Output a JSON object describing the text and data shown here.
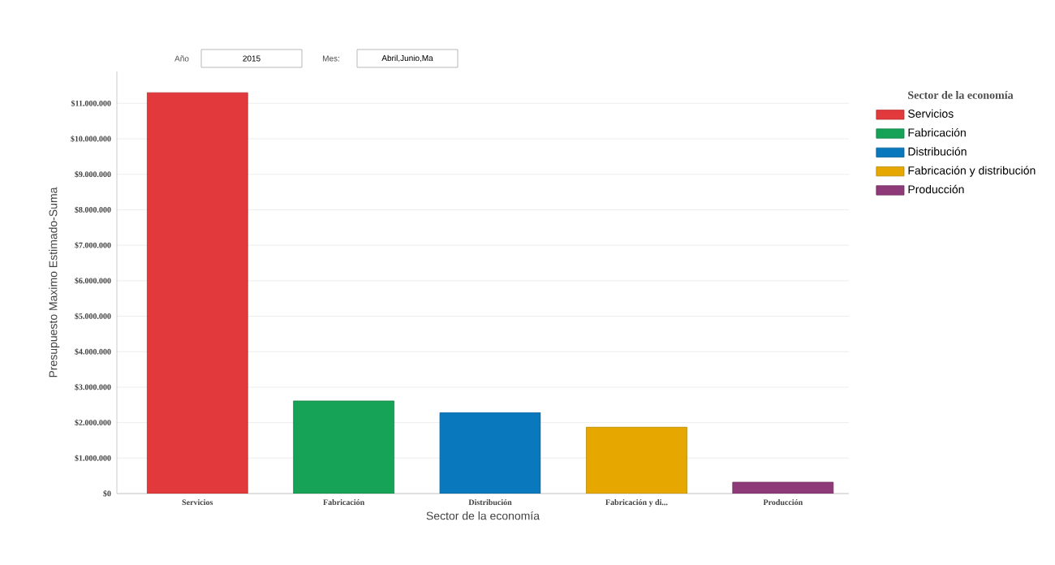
{
  "chart_data": {
    "type": "bar",
    "xlabel": "Sector de la economía",
    "ylabel": "Presupuesto Maximo Estimado-Suma",
    "legend_title": "Sector de la economía",
    "categories": [
      "Servicios",
      "Fabricación",
      "Distribución",
      "Fabricación y di...",
      "Producción"
    ],
    "series": [
      {
        "name": "Servicios",
        "color": "#e23a3c",
        "values": [
          11300000,
          null,
          null,
          null,
          null
        ]
      },
      {
        "name": "Fabricación",
        "color": "#16a257",
        "values": [
          null,
          2610000,
          null,
          null,
          null
        ]
      },
      {
        "name": "Distribución",
        "color": "#0a78bd",
        "values": [
          null,
          null,
          2280000,
          null,
          null
        ]
      },
      {
        "name": "Fabricación y distribución",
        "color": "#e6a800",
        "values": [
          null,
          null,
          null,
          1870000,
          null
        ]
      },
      {
        "name": "Producción",
        "color": "#8e3a78",
        "values": [
          null,
          null,
          null,
          null,
          320000
        ]
      }
    ],
    "ylim": [
      0,
      11900000
    ],
    "yticks": [
      {
        "value": 0,
        "label": "$0"
      },
      {
        "value": 1000000,
        "label": "$1.000.000"
      },
      {
        "value": 2000000,
        "label": "$2.000.000"
      },
      {
        "value": 3000000,
        "label": "$3.000.000"
      },
      {
        "value": 4000000,
        "label": "$4.000.000"
      },
      {
        "value": 5000000,
        "label": "$5.000.000"
      },
      {
        "value": 6000000,
        "label": "$6.000.000"
      },
      {
        "value": 7000000,
        "label": "$7.000.000"
      },
      {
        "value": 8000000,
        "label": "$8.000.000"
      },
      {
        "value": 9000000,
        "label": "$9.000.000"
      },
      {
        "value": 10000000,
        "label": "$10.000.000"
      },
      {
        "value": 11000000,
        "label": "$11.000.000"
      }
    ],
    "grid": "y",
    "legend": "top right",
    "annotations": [
      "Año",
      "2015",
      "Mes:",
      "Abril,Junio,Ma"
    ]
  }
}
